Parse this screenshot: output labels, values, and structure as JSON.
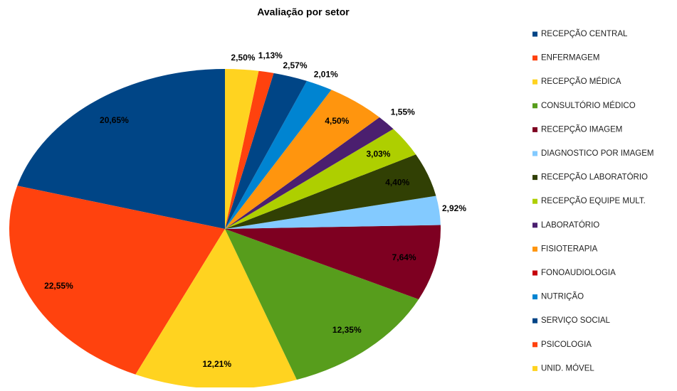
{
  "chart_data": {
    "type": "pie",
    "title": "Avaliação por setor",
    "categories": [
      "RECEPÇÃO CENTRAL",
      "ENFERMAGEM",
      "RECEPÇÃO  MÉDICA",
      "CONSULTÓRIO MÉDICO",
      "RECEPÇÃO IMAGEM",
      "DIAGNOSTICO POR IMAGEM",
      "RECEPÇÃO LABORATÓRIO",
      "RECEPÇÃO EQUIPE MULT.",
      "LABORATÓRIO",
      "FISIOTERAPIA",
      "FONOAUDIOLOGIA",
      "NUTRIÇÃO",
      "SERVIÇO SOCIAL",
      "PSICOLOGIA",
      "UNID. MÓVEL"
    ],
    "values": [
      20.65,
      22.55,
      12.21,
      12.35,
      7.64,
      2.92,
      4.4,
      3.03,
      1.55,
      4.5,
      0,
      2.01,
      2.57,
      1.13,
      2.5
    ],
    "value_labels": [
      "20,65%",
      "22,55%",
      "12,21%",
      "12,35%",
      "7,64%",
      "2,92%",
      "4,40%",
      "3,03%",
      "1,55%",
      "4,50%",
      null,
      "2,01%",
      "2,57%",
      "1,13%",
      "2,50%"
    ],
    "colors": [
      "#004586",
      "#ff420e",
      "#ffd320",
      "#579d1c",
      "#7e0021",
      "#83caff",
      "#314004",
      "#aecf00",
      "#4b1f6f",
      "#ff950e",
      "#c5000b",
      "#0084d1",
      "#004586",
      "#ff420e",
      "#ffd320"
    ],
    "legend": "right"
  }
}
